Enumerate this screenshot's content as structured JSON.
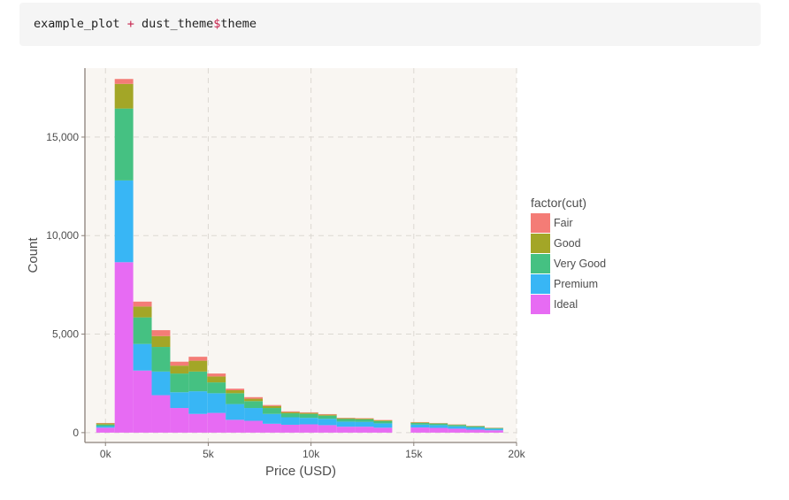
{
  "code": {
    "object": "example_plot",
    "operator": "+",
    "theme_obj": "dust_theme",
    "accessor": "$",
    "member": "theme"
  },
  "chart_data": {
    "type": "bar",
    "subtype": "stacked-histogram",
    "xlabel": "Price (USD)",
    "ylabel": "Count",
    "xlim": [
      -1000,
      20000
    ],
    "ylim": [
      -500,
      18500
    ],
    "x_ticks": [
      0,
      5000,
      10000,
      15000,
      20000
    ],
    "x_tick_labels": [
      "0k",
      "5k",
      "10k",
      "15k",
      "20k"
    ],
    "y_ticks": [
      0,
      5000,
      10000,
      15000
    ],
    "y_tick_labels": [
      "0",
      "5,000",
      "10,000",
      "15,000"
    ],
    "bin_width": 900,
    "bin_starts": [
      -450,
      450,
      1350,
      2250,
      3150,
      4050,
      4950,
      5850,
      6750,
      7650,
      8550,
      9450,
      10350,
      11250,
      12150,
      13050,
      14850,
      15750,
      16650,
      17550,
      18450
    ],
    "legend_title": "factor(cut)",
    "legend_position": "right",
    "grid": true,
    "panel_background": "#f9f6f2",
    "series": [
      {
        "name": "Ideal",
        "color": "#e76bf3",
        "values": [
          250,
          8650,
          3150,
          1900,
          1250,
          950,
          1000,
          650,
          600,
          450,
          400,
          420,
          380,
          300,
          300,
          250,
          260,
          240,
          200,
          150,
          120
        ]
      },
      {
        "name": "Premium",
        "color": "#38b6f5",
        "values": [
          80,
          4150,
          1350,
          1200,
          800,
          1150,
          1000,
          800,
          650,
          500,
          380,
          330,
          320,
          260,
          250,
          220,
          150,
          140,
          120,
          110,
          70
        ]
      },
      {
        "name": "Very Good",
        "color": "#45c182",
        "values": [
          80,
          3650,
          1350,
          1250,
          950,
          1000,
          550,
          550,
          350,
          300,
          200,
          200,
          160,
          130,
          120,
          110,
          80,
          80,
          70,
          60,
          40
        ]
      },
      {
        "name": "Good",
        "color": "#a3a627",
        "values": [
          60,
          1250,
          550,
          550,
          400,
          550,
          300,
          150,
          120,
          100,
          60,
          50,
          50,
          40,
          40,
          40,
          30,
          20,
          20,
          15,
          10
        ]
      },
      {
        "name": "Fair",
        "color": "#f47c76",
        "values": [
          20,
          250,
          250,
          300,
          200,
          200,
          150,
          80,
          80,
          50,
          40,
          30,
          30,
          20,
          20,
          20,
          15,
          10,
          10,
          10,
          10
        ]
      }
    ],
    "legend_order": [
      "Fair",
      "Good",
      "Very Good",
      "Premium",
      "Ideal"
    ]
  }
}
